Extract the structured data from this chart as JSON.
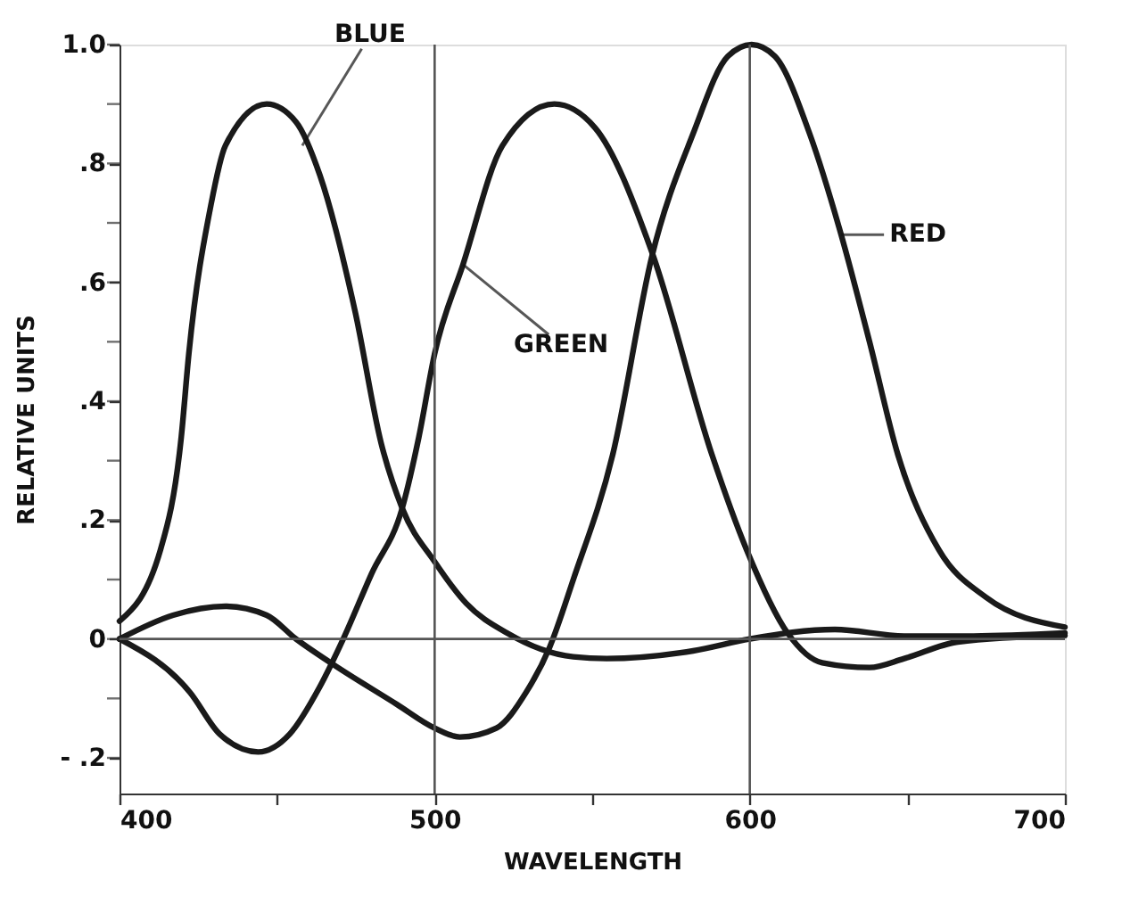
{
  "chart_data": {
    "type": "line",
    "xlabel": "WAVELENGTH",
    "ylabel": "RELATIVE UNITS",
    "xlim": [
      400,
      700
    ],
    "ylim": [
      -0.26,
      1.0
    ],
    "xticks": [
      400,
      {
        "value": 450,
        "label": null
      },
      500,
      {
        "value": 550,
        "label": null
      },
      600,
      {
        "value": 650,
        "label": null
      },
      700
    ],
    "yticks": [
      {
        "value": -0.2,
        "label": "- .2"
      },
      {
        "value": -0.1,
        "label": null
      },
      0,
      {
        "value": 0.1,
        "label": null
      },
      {
        "value": 0.2,
        "label": ".2"
      },
      {
        "value": 0.3,
        "label": null
      },
      {
        "value": 0.4,
        "label": ".4"
      },
      {
        "value": 0.5,
        "label": null
      },
      {
        "value": 0.6,
        "label": ".6"
      },
      {
        "value": 0.7,
        "label": null
      },
      {
        "value": 0.8,
        "label": ".8"
      },
      {
        "value": 0.9,
        "label": null
      },
      {
        "value": 1.0,
        "label": "1.0"
      }
    ],
    "grid": false,
    "marker": "none",
    "line_style": "solid",
    "series": [
      {
        "color": "#1a1a1a",
        "x": [
          400,
          413,
          419.6,
          422,
          429,
          433.6,
          446.7,
          456,
          463.6,
          474.8,
          483,
          489.7,
          500,
          510,
          523,
          544,
          554.6,
          582,
          600,
          627,
          649,
          671,
          700
        ],
        "values": [
          0.03,
          0.15,
          0.34,
          0.48,
          0.73,
          0.83,
          0.9,
          0.87,
          0.78,
          0.55,
          0.33,
          0.22,
          0.13,
          0.06,
          0.01,
          -0.03,
          -0.033,
          -0.02,
          0,
          0.016,
          0.005,
          0.005,
          0.01
        ]
      },
      {
        "color": "#1a1a1a",
        "x": [
          400,
          422.4,
          431.8,
          444,
          454,
          463.6,
          471,
          480,
          489.7,
          495,
          500,
          509,
          521.5,
          538,
          550.9,
          569,
          588,
          599,
          612,
          623,
          638,
          649,
          666,
          700
        ],
        "values": [
          0,
          -0.09,
          -0.16,
          -0.19,
          -0.16,
          -0.08,
          0,
          0.11,
          0.22,
          0.34,
          0.48,
          0.63,
          0.83,
          0.9,
          0.86,
          0.65,
          0.31,
          0.15,
          0.01,
          -0.04,
          -0.048,
          -0.033,
          -0.005,
          0.006
        ]
      },
      {
        "color": "#1a1a1a",
        "x": [
          400,
          417,
          433.6,
          446.7,
          456,
          467,
          488,
          500,
          508,
          519.6,
          529,
          536.4,
          544,
          556.5,
          569,
          582,
          593,
          600.6,
          608,
          619,
          629,
          638,
          647,
          660,
          675,
          700
        ],
        "values": [
          0,
          0.04,
          0.055,
          0.04,
          0,
          -0.04,
          -0.11,
          -0.15,
          -0.165,
          -0.15,
          -0.09,
          -0.015,
          0.1,
          0.31,
          0.645,
          0.85,
          0.98,
          1.0,
          0.98,
          0.85,
          0.68,
          0.5,
          0.31,
          0.15,
          0.07,
          0.02
        ]
      }
    ],
    "ref_lines": [
      {
        "axis": "x",
        "value": 500,
        "color": "#555555"
      },
      {
        "axis": "x",
        "value": 600,
        "color": "#555555"
      },
      {
        "axis": "y",
        "value": 0,
        "color": "#555555"
      }
    ],
    "annotations": [
      {
        "text": "BLUE",
        "x": 458,
        "y": 0.83
      },
      {
        "text": "GREEN",
        "x": 509,
        "y": 0.63
      },
      {
        "text": "RED",
        "x": 629,
        "y": 0.68
      }
    ]
  }
}
